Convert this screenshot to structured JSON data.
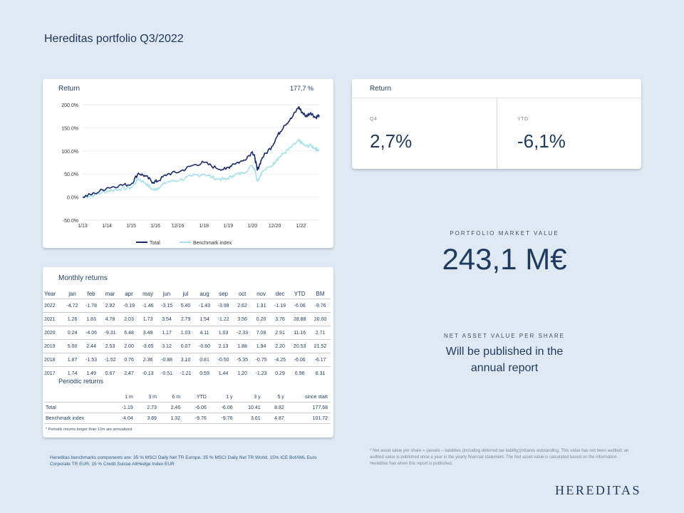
{
  "page_title": "Hereditas portfolio Q3/2022",
  "chart_card": {
    "header": "Return",
    "total_value": "177,7 %"
  },
  "chart_data": {
    "type": "line",
    "title": "Return",
    "x_tick_labels": [
      "1/13",
      "1/14",
      "1/15",
      "1/16",
      "12/16",
      "1/18",
      "1/19",
      "1/20",
      "12/20",
      "1/22"
    ],
    "y_tick_labels": [
      "200.0%",
      "150.0%",
      "100.0%",
      "50.0%",
      "0.0%",
      "-50.0%"
    ],
    "ylim": [
      -50,
      200
    ],
    "xlim": [
      2013.0,
      2022.75
    ],
    "grid": "horizontal",
    "legend_position": "bottom",
    "x": [
      2013.0,
      2013.5,
      2014.0,
      2014.5,
      2015.0,
      2015.3,
      2015.6,
      2015.9,
      2016.1,
      2016.5,
      2017.0,
      2017.5,
      2018.0,
      2018.5,
      2018.9,
      2019.2,
      2019.6,
      2020.0,
      2020.1,
      2020.2,
      2020.4,
      2020.8,
      2021.0,
      2021.3,
      2021.6,
      2021.9,
      2022.0,
      2022.2,
      2022.4,
      2022.6,
      2022.75
    ],
    "series": [
      {
        "name": "Total",
        "color": "#1a2d6b",
        "values": [
          0,
          8,
          20,
          25,
          28,
          52,
          45,
          32,
          35,
          50,
          55,
          68,
          75,
          63,
          60,
          72,
          78,
          98,
          85,
          58,
          85,
          110,
          130,
          155,
          170,
          195,
          187,
          175,
          183,
          172,
          177.7
        ]
      },
      {
        "name": "Benchmark index",
        "color": "#a6e0ea",
        "values": [
          0,
          5,
          13,
          17,
          20,
          40,
          30,
          15,
          20,
          33,
          37,
          45,
          50,
          40,
          38,
          47,
          52,
          68,
          60,
          35,
          55,
          68,
          82,
          95,
          108,
          122,
          118,
          110,
          112,
          105,
          101.7
        ]
      }
    ]
  },
  "return_card": {
    "header": "Return",
    "q4_label": "Q4",
    "q4_value": "2,7%",
    "ytd_label": "YTD",
    "ytd_value": "-6,1%"
  },
  "market_value": {
    "label": "PORTFOLIO MARKET VALUE",
    "value": "243,1 M€"
  },
  "nav": {
    "label": "NET ASSET VALUE PER SHARE",
    "line1": "Will be published in the",
    "line2": "annual report"
  },
  "monthly": {
    "title": "Monthly returns",
    "headers": [
      "Year",
      "jan",
      "feb",
      "mar",
      "apr",
      "may",
      "jun",
      "jul",
      "aug",
      "sep",
      "oct",
      "nov",
      "dec",
      "YTD",
      "BM"
    ],
    "rows": [
      [
        "2022",
        "-4.72",
        "-1.78",
        "2.92",
        "-0.19",
        "-1.46",
        "-3.15",
        "5.40",
        "-1.43",
        "-3.99",
        "2.62",
        "1.31",
        "-1.19",
        "-6.06",
        "-9.76"
      ],
      [
        "2021",
        "1.26",
        "1.83",
        "4.78",
        "2.03",
        "1.73",
        "3.54",
        "2.79",
        "1.54",
        "-1.22",
        "3.56",
        "0.20",
        "3.76",
        "28.88",
        "20.00"
      ],
      [
        "2020",
        "0.24",
        "-4.06",
        "-9.31",
        "6.48",
        "3.48",
        "1.17",
        "1.03",
        "4.11",
        "1.03",
        "-2.33",
        "7.08",
        "2.91",
        "11.16",
        "2.71"
      ],
      [
        "2019",
        "5.00",
        "2.44",
        "2.53",
        "2.00",
        "-3.65",
        "3.12",
        "0.07",
        "-0.60",
        "2.13",
        "1.88",
        "1.94",
        "2.20",
        "20.53",
        "21.52"
      ],
      [
        "2018",
        "1.87",
        "-1.53",
        "-1.52",
        "0.76",
        "2.36",
        "-0.88",
        "3.10",
        "0.81",
        "-0.50",
        "-5.35",
        "-0.75",
        "-4.25",
        "-6.06",
        "-6.17"
      ],
      [
        "2017",
        "1.74",
        "1.49",
        "0.67",
        "2.47",
        "-0.13",
        "-0.51",
        "-1.21",
        "0.59",
        "1.44",
        "1.20",
        "-1.23",
        "0.29",
        "6.96",
        "8.31"
      ]
    ]
  },
  "periodic": {
    "title": "Periodic returns",
    "headers": [
      "",
      "1 m",
      "3 m",
      "6 m",
      "YTD",
      "1 y",
      "3 y",
      "5 y",
      "since start"
    ],
    "rows": [
      [
        "Total",
        "-1.19",
        "2.73",
        "2.46",
        "-6.06",
        "-6.06",
        "10.41",
        "8.82",
        "177.68"
      ],
      [
        "Benchmark index",
        "-4.04",
        "3.69",
        "1.32",
        "-9.76",
        "-9.76",
        "3.61",
        "4.87",
        "101.72"
      ]
    ],
    "note": "* Periodic returns longer than 12m are annualized."
  },
  "footer_left": "Hereditas benchmarks components are: 35 % MSCI Daily Net TR Europe, 35 % MSCI Daily Net TR World, 15% ICE BofAML Euro Corporate TR EUR, 15 % Credit Suisse AllHedge Index EUR",
  "footer_right": "* Net asset value per share = (assets – liabilities (including deferred tax liability))/shares outstanding. This value has not been audited; an audited value is published once a year in the yearly financial statement. The Net asset value is calculated based on the information Hereditas has when this report is published.",
  "brand": "HEREDITAS"
}
